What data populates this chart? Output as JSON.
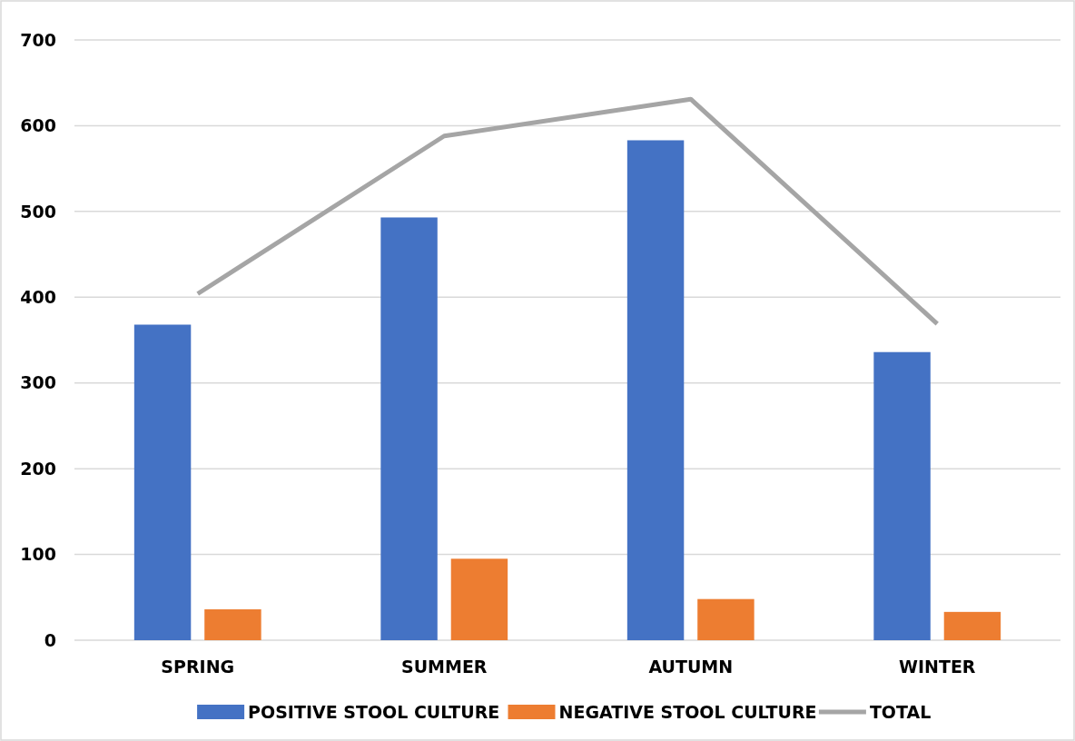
{
  "chart_data": {
    "type": "bar",
    "categories": [
      "SPRING",
      "SUMMER",
      "AUTUMN",
      "WINTER"
    ],
    "series": [
      {
        "name": "POSITIVE STOOL CULTURE",
        "color": "#4472c4",
        "values": [
          368,
          493,
          583,
          336
        ]
      },
      {
        "name": "NEGATIVE STOOL CULTURE",
        "color": "#ed7d31",
        "values": [
          36,
          95,
          48,
          33
        ]
      },
      {
        "name": "TOTAL",
        "type": "line",
        "color": "#a5a5a5",
        "values": [
          404,
          588,
          631,
          369
        ]
      }
    ],
    "ylim": [
      0,
      700
    ],
    "yticks": [
      0,
      100,
      200,
      300,
      400,
      500,
      600,
      700
    ],
    "grid": "y",
    "legend": "bottom",
    "marker": "none"
  }
}
